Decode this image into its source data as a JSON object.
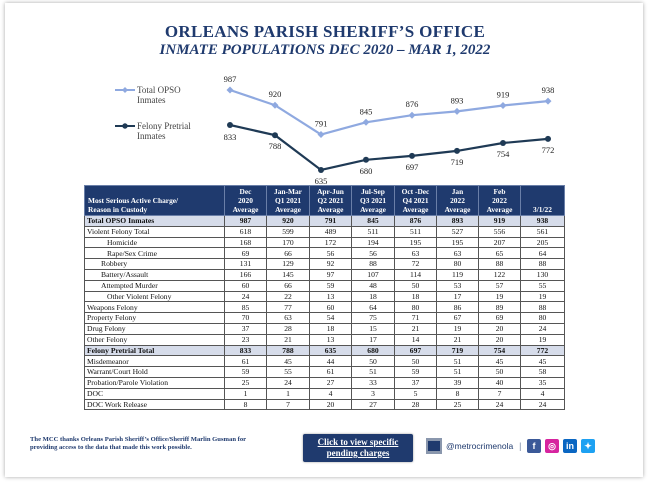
{
  "title": "ORLEANS PARISH SHERIFF’S OFFICE",
  "subtitle": "INMATE POPULATIONS DEC 2020 – MAR 1, 2022",
  "chart_data": {
    "type": "line",
    "x": [
      "Dec 2020",
      "Jan-Mar Q1 2021",
      "Apr-Jun Q2 2021",
      "Jul-Sep Q3 2021",
      "Oct-Dec Q4 2021",
      "Jan 2022",
      "Feb 2022",
      "3/1/22"
    ],
    "series": [
      {
        "name": "Total OPSO Inmates",
        "values": [
          987,
          920,
          791,
          845,
          876,
          893,
          919,
          938
        ],
        "color": "#8fa9e0"
      },
      {
        "name": "Felony Pretrial Inmates",
        "values": [
          833,
          788,
          635,
          680,
          697,
          719,
          754,
          772
        ],
        "color": "#1f3a55"
      }
    ],
    "legend": "left",
    "grid": false
  },
  "legend": {
    "total": [
      "Total OPSO",
      "Inmates"
    ],
    "felony": [
      "Felony Pretrial",
      "Inmates"
    ]
  },
  "table": {
    "header_label": [
      "Most Serious Active Charge/",
      "Reason in Custody"
    ],
    "columns": [
      [
        "Dec",
        "2020",
        "Average"
      ],
      [
        "Jan-Mar",
        "Q1 2021",
        "Average"
      ],
      [
        "Apr-Jun",
        "Q2 2021",
        "Average"
      ],
      [
        "Jul-Sep",
        "Q3 2021",
        "Average"
      ],
      [
        "Oct -Dec",
        "Q4 2021",
        "Average"
      ],
      [
        "Jan",
        "2022",
        "Average"
      ],
      [
        "Feb",
        "2022",
        "Average"
      ],
      [
        "3/1/22"
      ]
    ],
    "rows": [
      {
        "label": "Total OPSO Inmates",
        "values": [
          "987",
          "920",
          "791",
          "845",
          "876",
          "893",
          "919",
          "938"
        ],
        "bold": true,
        "shade": true,
        "indent": 0
      },
      {
        "label": "Violent Felony Total",
        "values": [
          "618",
          "599",
          "489",
          "511",
          "511",
          "527",
          "556",
          "561"
        ],
        "indent": 0
      },
      {
        "label": "Homicide",
        "values": [
          "168",
          "170",
          "172",
          "194",
          "195",
          "195",
          "207",
          "205"
        ],
        "indent": 2
      },
      {
        "label": "Rape/Sex Crime",
        "values": [
          "69",
          "66",
          "56",
          "56",
          "63",
          "63",
          "65",
          "64"
        ],
        "indent": 2
      },
      {
        "label": "Robbery",
        "values": [
          "131",
          "129",
          "92",
          "88",
          "72",
          "80",
          "88",
          "88"
        ],
        "indent": 1
      },
      {
        "label": "Battery/Assault",
        "values": [
          "166",
          "145",
          "97",
          "107",
          "114",
          "119",
          "122",
          "130"
        ],
        "indent": 1
      },
      {
        "label": "Attempted Murder",
        "values": [
          "60",
          "66",
          "59",
          "48",
          "50",
          "53",
          "57",
          "55"
        ],
        "indent": 1
      },
      {
        "label": "Other Violent Felony",
        "values": [
          "24",
          "22",
          "13",
          "18",
          "18",
          "17",
          "19",
          "19"
        ],
        "indent": 2
      },
      {
        "label": "Weapons Felony",
        "values": [
          "85",
          "77",
          "60",
          "64",
          "80",
          "86",
          "89",
          "88"
        ],
        "indent": 0
      },
      {
        "label": "Property Felony",
        "values": [
          "70",
          "63",
          "54",
          "75",
          "71",
          "67",
          "69",
          "80"
        ],
        "indent": 0
      },
      {
        "label": "Drug Felony",
        "values": [
          "37",
          "28",
          "18",
          "15",
          "21",
          "19",
          "20",
          "24"
        ],
        "indent": 0
      },
      {
        "label": "Other Felony",
        "values": [
          "23",
          "21",
          "13",
          "17",
          "14",
          "21",
          "20",
          "19"
        ],
        "indent": 0
      },
      {
        "label": "Felony Pretrial Total",
        "values": [
          "833",
          "788",
          "635",
          "680",
          "697",
          "719",
          "754",
          "772"
        ],
        "bold": true,
        "shade": true,
        "indent": 0
      },
      {
        "label": "Misdemeanor",
        "values": [
          "61",
          "45",
          "44",
          "50",
          "50",
          "51",
          "45",
          "45"
        ],
        "indent": 0
      },
      {
        "label": "Warrant/Court Hold",
        "values": [
          "59",
          "55",
          "61",
          "51",
          "59",
          "51",
          "50",
          "58"
        ],
        "indent": 0
      },
      {
        "label": "Probation/Parole Violation",
        "values": [
          "25",
          "24",
          "27",
          "33",
          "37",
          "39",
          "40",
          "35"
        ],
        "indent": 0
      },
      {
        "label": "DOC",
        "values": [
          "1",
          "1",
          "4",
          "3",
          "5",
          "8",
          "7",
          "4"
        ],
        "indent": 0
      },
      {
        "label": "DOC Work Release",
        "values": [
          "8",
          "7",
          "20",
          "27",
          "28",
          "25",
          "24",
          "24"
        ],
        "indent": 0
      }
    ]
  },
  "footer": {
    "credit": "The MCC thanks Orleans Parish Sheriff’s Office/Sheriff Marlin Gusman for providing access to the data that made this work possible.",
    "cta": [
      "Click to view specific",
      "pending charges"
    ],
    "handle": "@metrocrimenola",
    "separator": "|",
    "icons": [
      "facebook-icon",
      "instagram-icon",
      "linkedin-icon",
      "twitter-icon"
    ]
  }
}
